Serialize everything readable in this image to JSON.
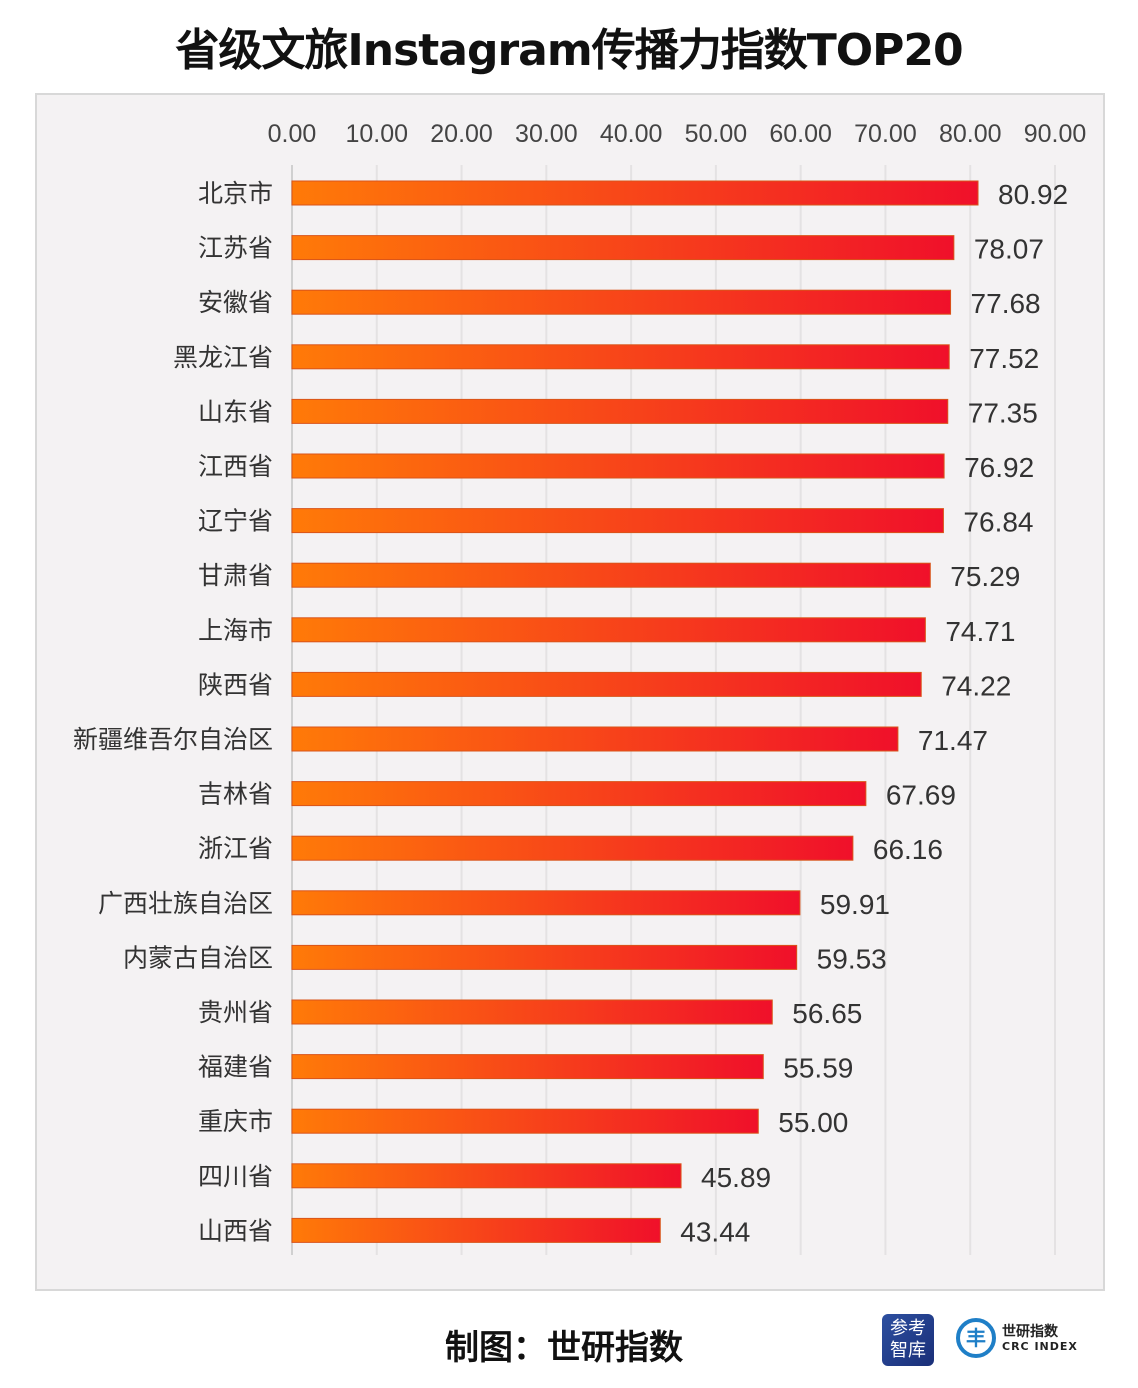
{
  "chart_data": {
    "type": "bar",
    "orientation": "horizontal",
    "title": "省级文旅Instagram传播力指数TOP20",
    "xlim": [
      0,
      90
    ],
    "xticks": [
      "0.00",
      "10.00",
      "20.00",
      "30.00",
      "40.00",
      "50.00",
      "60.00",
      "70.00",
      "80.00",
      "90.00"
    ],
    "grid": true,
    "categories": [
      "北京市",
      "江苏省",
      "安徽省",
      "黑龙江省",
      "山东省",
      "江西省",
      "辽宁省",
      "甘肃省",
      "上海市",
      "陕西省",
      "新疆维吾尔自治区",
      "吉林省",
      "浙江省",
      "广西壮族自治区",
      "内蒙古自治区",
      "贵州省",
      "福建省",
      "重庆市",
      "四川省",
      "山西省"
    ],
    "values": [
      80.92,
      78.07,
      77.68,
      77.52,
      77.35,
      76.92,
      76.84,
      75.29,
      74.71,
      74.22,
      71.47,
      67.69,
      66.16,
      59.91,
      59.53,
      56.65,
      55.59,
      55.0,
      45.89,
      43.44
    ],
    "value_labels": [
      "80.92",
      "78.07",
      "77.68",
      "77.52",
      "77.35",
      "76.92",
      "76.84",
      "75.29",
      "74.71",
      "74.22",
      "71.47",
      "67.69",
      "66.16",
      "59.91",
      "59.53",
      "56.65",
      "55.59",
      "55.00",
      "45.89",
      "43.44"
    ],
    "colors": {
      "bar_start": "#ff7a08",
      "bar_end": "#f0102a",
      "plot_bg": "#f4f2f3"
    }
  },
  "footer": {
    "credit": "制图：世研指数",
    "logo1_text": "参考智库",
    "logo2_cn": "世研指数",
    "logo2_en": "CRC INDEX"
  }
}
